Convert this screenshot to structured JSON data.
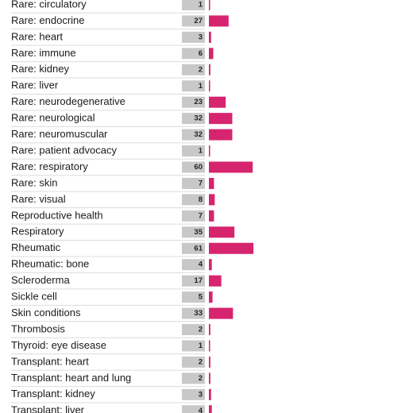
{
  "chart_data": {
    "type": "bar",
    "orientation": "horizontal",
    "color": "#d6246e",
    "categories": [
      "Rare: circulatory",
      "Rare: endocrine",
      "Rare: heart",
      "Rare: immune",
      "Rare: kidney",
      "Rare: liver",
      "Rare: neurodegenerative",
      "Rare: neurological",
      "Rare: neuromuscular",
      "Rare: patient advocacy",
      "Rare: respiratory",
      "Rare: skin",
      "Rare: visual",
      "Reproductive health",
      "Respiratory",
      "Rheumatic",
      "Rheumatic: bone",
      "Scleroderma",
      "Sickle cell",
      "Skin conditions",
      "Thrombosis",
      "Thyroid: eye disease",
      "Transplant: heart",
      "Transplant: heart and lung",
      "Transplant: kidney",
      "Transplant: liver"
    ],
    "values": [
      1,
      27,
      3,
      6,
      2,
      1,
      23,
      32,
      32,
      1,
      60,
      7,
      8,
      7,
      35,
      61,
      4,
      17,
      5,
      33,
      2,
      1,
      2,
      2,
      3,
      4
    ]
  }
}
